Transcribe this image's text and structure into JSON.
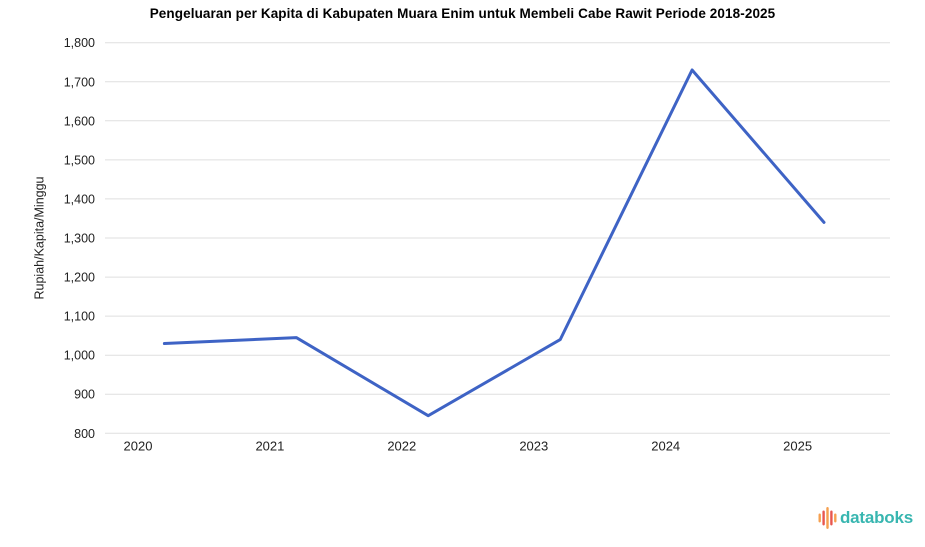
{
  "chart_data": {
    "type": "line",
    "title": "Pengeluaran per Kapita di Kabupaten Muara Enim untuk Membeli Cabe Rawit Periode 2018-2025",
    "ylabel": "Rupiah/Kapita/Minggu",
    "xlabel": "",
    "x": [
      2020.2,
      2021.2,
      2022.2,
      2023.2,
      2024.2,
      2025.2
    ],
    "values": [
      1030,
      1045,
      845,
      1040,
      1730,
      1340
    ],
    "x_ticks": [
      2020,
      2021,
      2022,
      2023,
      2024,
      2025
    ],
    "x_tick_labels": [
      "2020",
      "2021",
      "2022",
      "2023",
      "2024",
      "2025"
    ],
    "y_ticks": [
      800,
      900,
      1000,
      1100,
      1200,
      1300,
      1400,
      1500,
      1600,
      1700,
      1800
    ],
    "y_tick_labels": [
      "800",
      "900",
      "1,000",
      "1,100",
      "1,200",
      "1,300",
      "1,400",
      "1,500",
      "1,600",
      "1,700",
      "1,800"
    ],
    "xlim": [
      2019.75,
      2025.7
    ],
    "ylim": [
      800,
      1800
    ],
    "grid": "horizontal",
    "legend_position": "none",
    "line_color": "#3E63C5",
    "grid_color": "#DFDFDF",
    "tick_color": "#222222"
  },
  "branding": {
    "logo_text": "databoks",
    "logo_text_color": "#38B6B0",
    "logo_icon": "equalizer-bars-icon",
    "logo_bar_colors": [
      "#F6A04F",
      "#E8564F",
      "#F6A04F",
      "#E8564F",
      "#F6A04F"
    ]
  }
}
